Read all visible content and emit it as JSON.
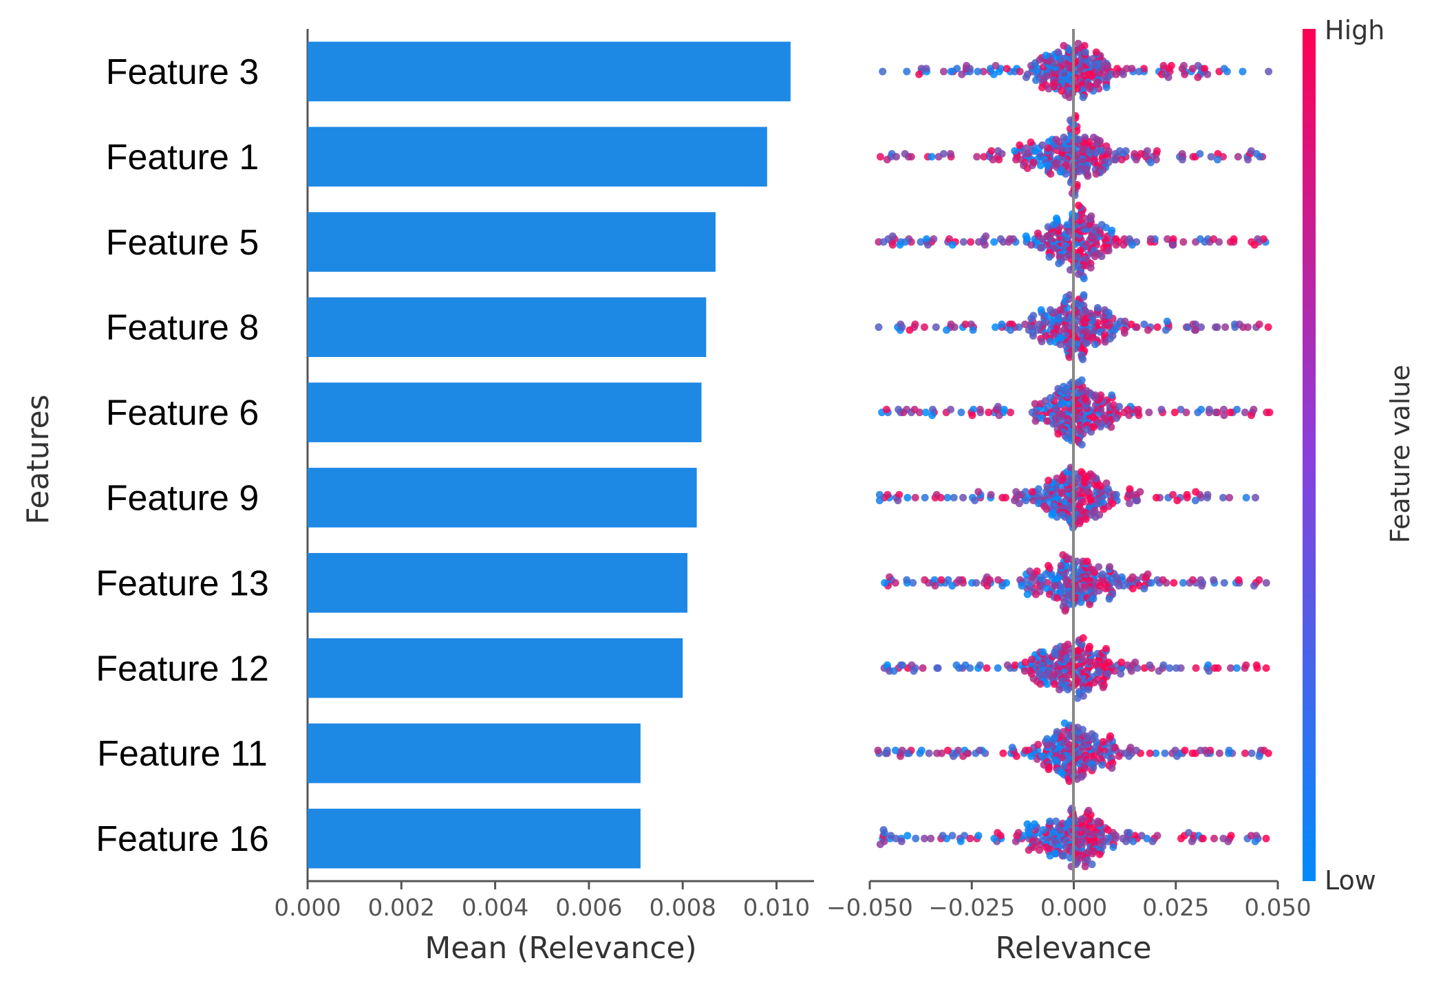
{
  "chart_data": [
    {
      "type": "bar",
      "orientation": "horizontal",
      "ylabel": "Features",
      "xlabel": "Mean (Relevance)",
      "categories": [
        "Feature 3",
        "Feature 1",
        "Feature 5",
        "Feature 8",
        "Feature 6",
        "Feature 9",
        "Feature 13",
        "Feature 12",
        "Feature 11",
        "Feature 16"
      ],
      "values": [
        0.0103,
        0.0098,
        0.0087,
        0.0085,
        0.0084,
        0.0083,
        0.0081,
        0.008,
        0.0071,
        0.0071
      ],
      "xlim": [
        0,
        0.0108
      ],
      "xticks": [
        "0.000",
        "0.002",
        "0.004",
        "0.006",
        "0.008",
        "0.010"
      ],
      "color": "#1e88e5"
    },
    {
      "type": "scatter",
      "subtype": "beeswarm",
      "xlabel": "Relevance",
      "categories": [
        "Feature 3",
        "Feature 1",
        "Feature 5",
        "Feature 8",
        "Feature 6",
        "Feature 9",
        "Feature 13",
        "Feature 12",
        "Feature 11",
        "Feature 16"
      ],
      "xlim": [
        -0.05,
        0.05
      ],
      "xticks": [
        "−0.050",
        "−0.025",
        "0.000",
        "0.025",
        "0.050"
      ],
      "colorbar": {
        "label": "Feature value",
        "high": "High",
        "low": "Low",
        "high_color": "#ff0052",
        "low_color": "#008bfb"
      }
    }
  ]
}
